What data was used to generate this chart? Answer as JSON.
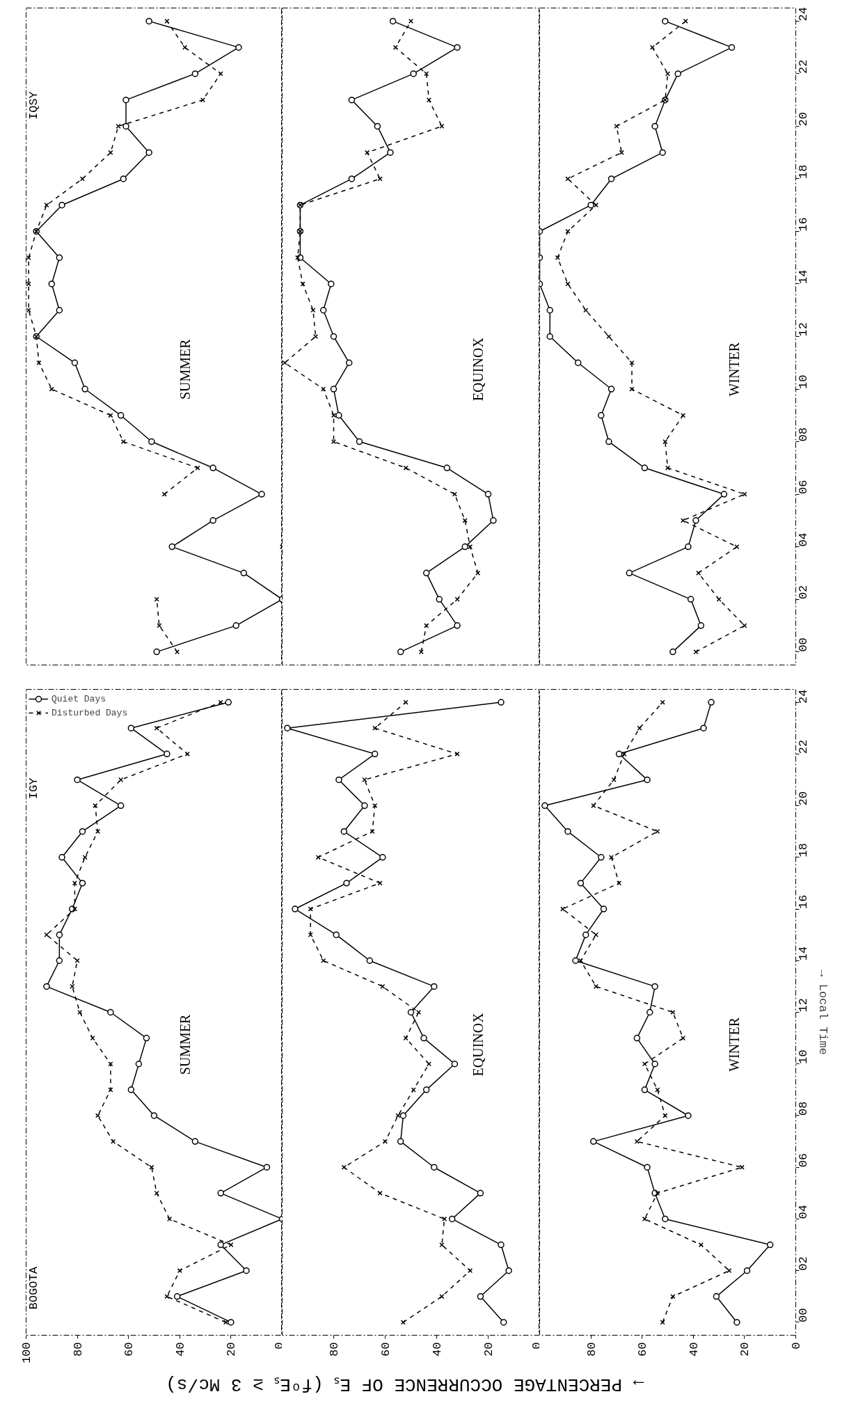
{
  "chart_data": [
    {
      "type": "line",
      "orientation": "horizontal",
      "title": "SUMMER",
      "annotations": [
        "IQSY"
      ],
      "x": [
        0,
        1,
        2,
        3,
        4,
        5,
        6,
        7,
        8,
        9,
        10,
        11,
        12,
        13,
        14,
        15,
        16,
        17,
        18,
        19,
        20,
        21,
        22,
        23,
        24
      ],
      "xlim": [
        100,
        0
      ],
      "ylim": [
        -0.5,
        24.5
      ],
      "tick_labels": false,
      "series": [
        {
          "color": "#000000",
          "marker": "circle",
          "line_style": "solid",
          "values": [
            49,
            18,
            0,
            15,
            43,
            27,
            8,
            27,
            51,
            63,
            77,
            81,
            96,
            87,
            90,
            87,
            96,
            86,
            62,
            52,
            61,
            61,
            34,
            17,
            52
          ]
        },
        {
          "color": "#000000",
          "marker": "cross",
          "line_style": "dashed",
          "values": [
            41,
            48,
            49,
            null,
            0,
            null,
            46,
            33,
            62,
            67,
            90,
            95,
            96,
            99,
            99,
            99,
            96,
            92,
            78,
            67,
            64,
            31,
            24,
            38,
            45
          ]
        }
      ]
    },
    {
      "type": "line",
      "orientation": "horizontal",
      "title": "EQUINOX",
      "x": [
        0,
        1,
        2,
        3,
        4,
        5,
        6,
        7,
        8,
        9,
        10,
        11,
        12,
        13,
        14,
        15,
        16,
        17,
        18,
        19,
        20,
        21,
        22,
        23,
        24
      ],
      "xlim": [
        100,
        0
      ],
      "ylim": [
        -0.5,
        24.5
      ],
      "tick_labels": false,
      "series": [
        {
          "color": "#000000",
          "marker": "circle",
          "line_style": "solid",
          "values": [
            54,
            32,
            39,
            44,
            29,
            18,
            20,
            36,
            70,
            78,
            80,
            74,
            80,
            84,
            81,
            93,
            93,
            93,
            73,
            58,
            63,
            73,
            49,
            32,
            57
          ]
        },
        {
          "color": "#000000",
          "marker": "cross",
          "line_style": "dashed",
          "values": [
            46,
            44,
            32,
            24,
            27,
            29,
            33,
            52,
            80,
            80,
            84,
            99,
            87,
            88,
            92,
            94,
            93,
            93,
            62,
            67,
            38,
            43,
            44,
            56,
            50
          ]
        }
      ]
    },
    {
      "type": "line",
      "orientation": "horizontal",
      "title": "WINTER",
      "x": [
        0,
        1,
        2,
        3,
        4,
        5,
        6,
        7,
        8,
        9,
        10,
        11,
        12,
        13,
        14,
        15,
        16,
        17,
        18,
        19,
        20,
        21,
        22,
        23,
        24
      ],
      "xlim": [
        100,
        0
      ],
      "ylim": [
        -0.5,
        24.5
      ],
      "tick_labels": "y",
      "yticks": [
        {
          "value": 0,
          "label": "00"
        },
        {
          "value": 2,
          "label": "02"
        },
        {
          "value": 4,
          "label": "04"
        },
        {
          "value": 6,
          "label": "06"
        },
        {
          "value": 8,
          "label": "08"
        },
        10,
        12,
        14,
        16,
        18,
        20,
        22,
        24
      ],
      "series": [
        {
          "color": "#000000",
          "marker": "circle",
          "line_style": "solid",
          "values": [
            48,
            37,
            41,
            65,
            42,
            39,
            28,
            59,
            73,
            76,
            72,
            85,
            96,
            96,
            100,
            100,
            100,
            80,
            72,
            52,
            55,
            51,
            46,
            25,
            51
          ]
        },
        {
          "color": "#000000",
          "marker": "cross",
          "line_style": "dashed",
          "values": [
            39,
            20,
            30,
            38,
            23,
            44,
            20,
            50,
            51,
            44,
            64,
            64,
            73,
            82,
            89,
            93,
            89,
            78,
            89,
            68,
            70,
            51,
            50,
            56,
            43
          ]
        }
      ]
    },
    {
      "type": "line",
      "orientation": "horizontal",
      "title": "SUMMER",
      "annotations": [
        "IGY",
        "BOGOTA"
      ],
      "xlabel": "→ PERCENTAGE OCCURRENCE OF Eₛ  (fᵒEₛ ≥ 3 Mc/s)",
      "legend": "top left",
      "x": [
        0,
        1,
        2,
        3,
        4,
        5,
        6,
        7,
        8,
        9,
        10,
        11,
        12,
        13,
        14,
        15,
        16,
        17,
        18,
        19,
        20,
        21,
        22,
        23,
        24
      ],
      "xlim": [
        100,
        0
      ],
      "xticks": [
        100,
        80,
        60,
        40,
        20,
        0
      ],
      "ylim": [
        -0.5,
        24.5
      ],
      "tick_labels": "x",
      "series": [
        {
          "name": "Quiet Days",
          "color": "#000000",
          "marker": "circle",
          "line_style": "solid",
          "values": [
            20,
            41,
            14,
            24,
            0,
            24,
            6,
            34,
            50,
            59,
            56,
            53,
            67,
            92,
            87,
            87,
            82,
            78,
            86,
            78,
            63,
            80,
            45,
            59,
            21
          ]
        },
        {
          "name": "Disturbed Days",
          "color": "#000000",
          "marker": "cross",
          "line_style": "dashed",
          "values": [
            22,
            45,
            40,
            20,
            44,
            49,
            51,
            66,
            72,
            67,
            67,
            74,
            79,
            82,
            80,
            92,
            81,
            81,
            77,
            72,
            73,
            63,
            37,
            49,
            24
          ]
        }
      ]
    },
    {
      "type": "line",
      "orientation": "horizontal",
      "title": "EQUINOX",
      "x": [
        0,
        1,
        2,
        3,
        4,
        5,
        6,
        7,
        8,
        9,
        10,
        11,
        12,
        13,
        14,
        15,
        16,
        17,
        18,
        19,
        20,
        21,
        22,
        23,
        24
      ],
      "xlim": [
        100,
        0
      ],
      "xticks": [
        80,
        60,
        40,
        20,
        0
      ],
      "ylim": [
        -0.5,
        24.5
      ],
      "tick_labels": "x",
      "series": [
        {
          "color": "#000000",
          "marker": "circle",
          "line_style": "solid",
          "values": [
            14,
            23,
            12,
            15,
            34,
            23,
            41,
            54,
            53,
            44,
            33,
            45,
            50,
            41,
            66,
            79,
            95,
            75,
            61,
            76,
            68,
            78,
            64,
            98,
            15
          ]
        },
        {
          "color": "#000000",
          "marker": "cross",
          "line_style": "dashed",
          "values": [
            53,
            38,
            27,
            38,
            37,
            62,
            76,
            60,
            55,
            49,
            43,
            52,
            47,
            61,
            84,
            89,
            89,
            62,
            86,
            65,
            64,
            68,
            32,
            64,
            52
          ]
        }
      ]
    },
    {
      "type": "line",
      "orientation": "horizontal",
      "title": "WINTER",
      "ylabel": "→ Local Time",
      "x": [
        0,
        1,
        2,
        3,
        4,
        5,
        6,
        7,
        8,
        9,
        10,
        11,
        12,
        13,
        14,
        15,
        16,
        17,
        18,
        19,
        20,
        21,
        22,
        23,
        24
      ],
      "xlim": [
        100,
        0
      ],
      "xticks": [
        80,
        60,
        40,
        20,
        0
      ],
      "ylim": [
        -0.5,
        24.5
      ],
      "yticks": [
        {
          "value": 0,
          "label": "00"
        },
        {
          "value": 2,
          "label": "02"
        },
        {
          "value": 4,
          "label": "04"
        },
        {
          "value": 6,
          "label": "06"
        },
        {
          "value": 8,
          "label": "08"
        },
        10,
        12,
        14,
        16,
        18,
        20,
        22,
        24
      ],
      "series": [
        {
          "color": "#000000",
          "marker": "circle",
          "line_style": "solid",
          "values": [
            23,
            31,
            19,
            10,
            51,
            55,
            58,
            79,
            42,
            59,
            55,
            62,
            57,
            55,
            86,
            82,
            75,
            84,
            76,
            89,
            98,
            58,
            69,
            36,
            33
          ]
        },
        {
          "color": "#000000",
          "marker": "cross",
          "line_style": "dashed",
          "values": [
            52,
            48,
            26,
            37,
            59,
            54,
            21,
            62,
            51,
            54,
            59,
            44,
            48,
            78,
            84,
            78,
            91,
            69,
            72,
            54,
            79,
            71,
            67,
            61,
            52
          ]
        }
      ]
    }
  ]
}
